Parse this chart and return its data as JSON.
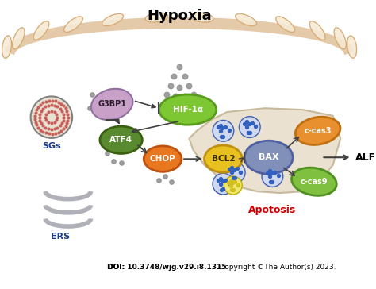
{
  "title": "Hypoxia",
  "doi_text": "DOI: 10.3748/wjg.v29.i8.1315",
  "copyright_text": "Copyright ©The Author(s) 2023.",
  "labels": {
    "HIF1a": "HIF-1α",
    "G3BP1": "G3BP1",
    "ATF4": "ATF4",
    "CHOP": "CHOP",
    "BCL2": "BCL2",
    "BAX": "BAX",
    "ccas3": "c-cas3",
    "ccas9": "c-cas9",
    "ALF": "ALF",
    "SGs": "SGs",
    "ERS": "ERS",
    "Apoptosis": "Apotosis"
  },
  "colors": {
    "background": "#ffffff",
    "title_color": "#000000",
    "HIF1a_fill": "#7dc832",
    "HIF1a_edge": "#5a9a20",
    "G3BP1_fill": "#c8a0c8",
    "G3BP1_edge": "#9070a0",
    "ATF4_fill": "#5a8a30",
    "ATF4_edge": "#3a6010",
    "CHOP_fill": "#e87820",
    "CHOP_edge": "#c05010",
    "BCL2_fill": "#e8c020",
    "BCL2_edge": "#c09010",
    "BAX_fill": "#8090b8",
    "BAX_edge": "#5060a0",
    "ccas3_fill": "#e89030",
    "ccas3_edge": "#c07010",
    "ccas9_fill": "#80c040",
    "ccas9_edge": "#509020",
    "cell_fill": "#e8dcc8",
    "cell_edge": "#c0b090",
    "membrane_color": "#d4a870",
    "dots_color": "#909090",
    "arrow_color": "#404040",
    "SGs_color": "#1a3a8a",
    "ERS_color": "#1a3a8a",
    "Apoptosis_color": "#cc0000",
    "ALF_color": "#000000",
    "dot_blue": "#3060c0",
    "dot_yellow": "#d4c020"
  }
}
